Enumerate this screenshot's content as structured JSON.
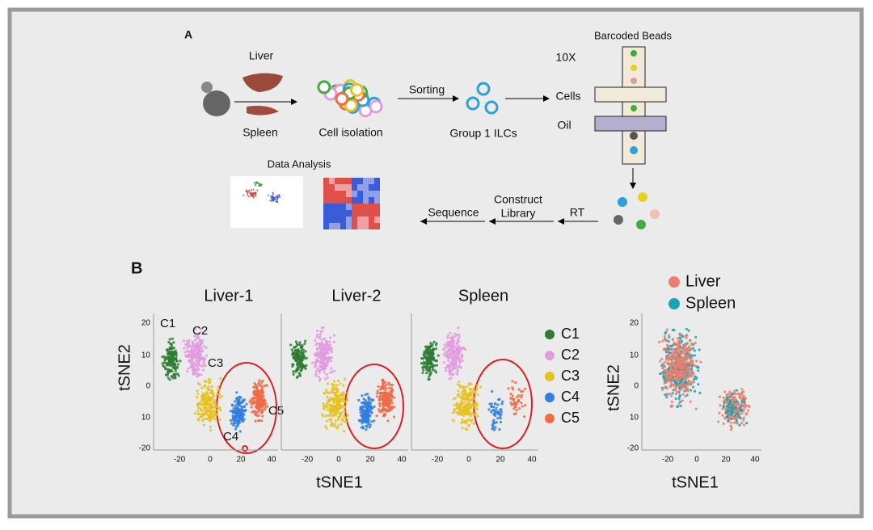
{
  "panel_a": {
    "label": "A",
    "liver": "Liver",
    "spleen": "Spleen",
    "cell_isolation": "Cell isolation",
    "sorting": "Sorting",
    "group1": "Group 1 ILCs",
    "beads": "Barcoded Beads",
    "tenx": "10X",
    "cells": "Cells",
    "oil": "Oil",
    "data_analysis": "Data Analysis",
    "construct": [
      "Construct",
      "Library"
    ],
    "sequence": "Sequence",
    "rt": "RT"
  },
  "panel_b": {
    "label": "B",
    "plots": [
      {
        "title": "Liver-1"
      },
      {
        "title": "Liver-2"
      },
      {
        "title": "Spleen"
      }
    ],
    "cluster_labels": [
      "C1",
      "C2",
      "C3",
      "C5",
      "C4"
    ],
    "legend": [
      {
        "name": "C1",
        "color": "#2e7d32"
      },
      {
        "name": "C2",
        "color": "#e39be0"
      },
      {
        "name": "C3",
        "color": "#e6c21e"
      },
      {
        "name": "C4",
        "color": "#2f7fe0"
      },
      {
        "name": "C5",
        "color": "#ef6a45"
      }
    ],
    "xticks": [
      "-20",
      "0",
      "20",
      "40"
    ],
    "yticks": [
      "20",
      "10",
      "0",
      "10",
      "-20"
    ],
    "x_axis": "tSNE1",
    "y_axis": "tSNE2",
    "right_plot": {
      "legend": [
        {
          "name": "Liver",
          "color": "#ec7e6c"
        },
        {
          "name": "Spleen",
          "color": "#1ba3b0"
        }
      ]
    }
  }
}
